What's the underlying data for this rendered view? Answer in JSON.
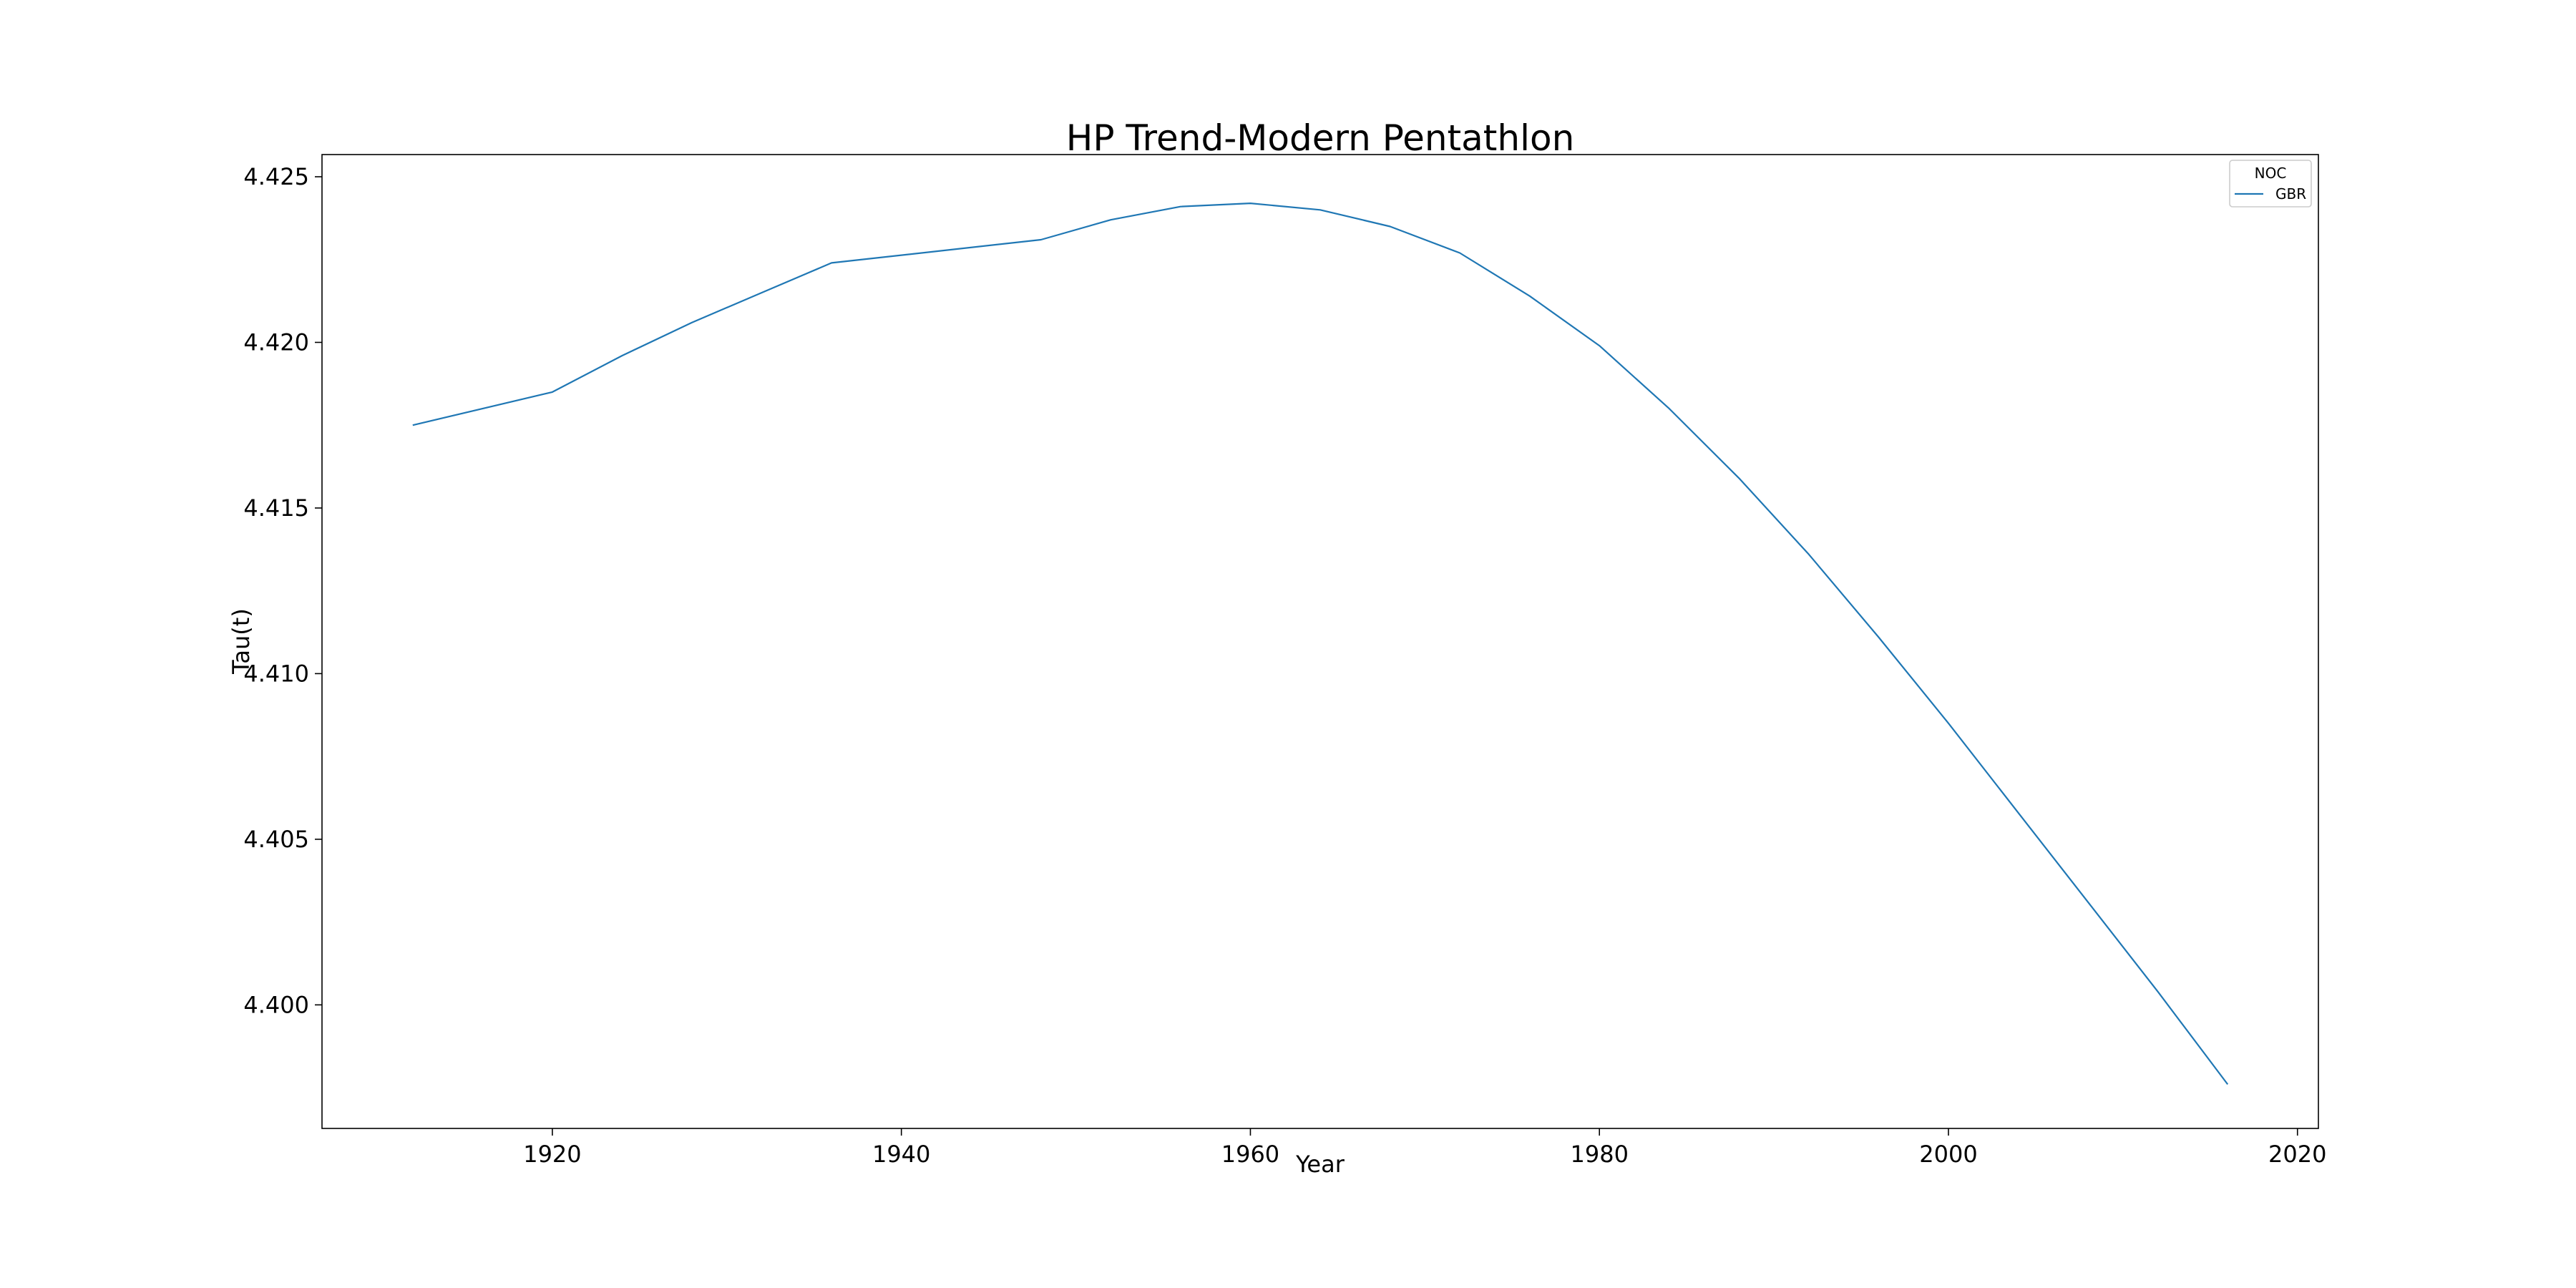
{
  "chart_data": {
    "type": "line",
    "title": "HP Trend-Modern Pentathlon",
    "xlabel": "Year",
    "ylabel": "Tau(t)",
    "xlim": [
      1906.8,
      2021.2
    ],
    "ylim": [
      4.39627,
      4.42567
    ],
    "xticks": [
      1920,
      1940,
      1960,
      1980,
      2000,
      2020
    ],
    "yticks": [
      4.4,
      4.405,
      4.41,
      4.415,
      4.42,
      4.425
    ],
    "ytick_labels": [
      "4.400",
      "4.405",
      "4.410",
      "4.415",
      "4.420",
      "4.425"
    ],
    "grid": false,
    "legend": {
      "title": "NOC",
      "placement": "top-right"
    },
    "series": [
      {
        "name": "GBR",
        "color": "#1f77b4",
        "x": [
          1912,
          1920,
          1924,
          1928,
          1932,
          1936,
          1948,
          1952,
          1956,
          1960,
          1964,
          1968,
          1972,
          1976,
          1980,
          1984,
          1988,
          1992,
          1996,
          2000,
          2004,
          2008,
          2012,
          2016
        ],
        "y": [
          4.4175,
          4.4185,
          4.4196,
          4.4206,
          4.4215,
          4.4224,
          4.4231,
          4.4237,
          4.4241,
          4.4242,
          4.424,
          4.4235,
          4.4227,
          4.4214,
          4.4199,
          4.418,
          4.4159,
          4.4136,
          4.4111,
          4.4085,
          4.4058,
          4.4031,
          4.4004,
          4.3976
        ]
      }
    ]
  }
}
